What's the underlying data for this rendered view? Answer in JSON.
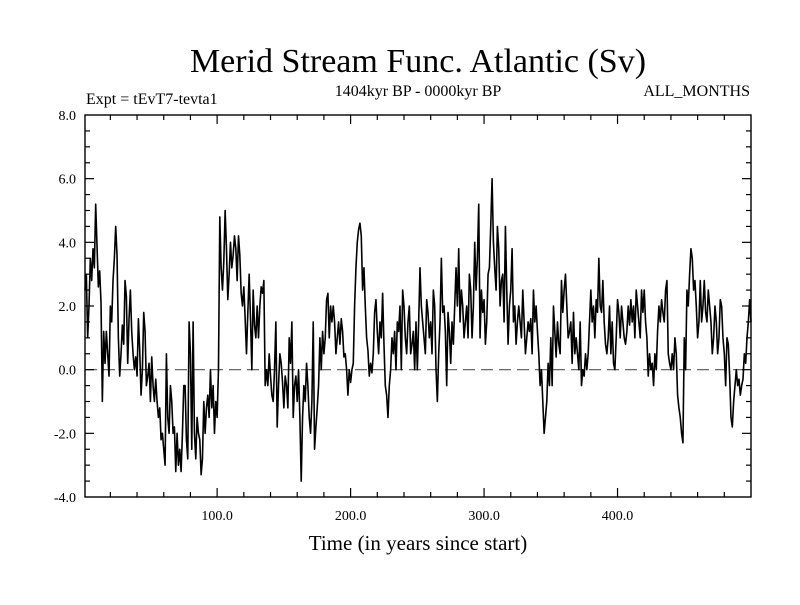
{
  "chart_data": {
    "type": "line",
    "title": "Merid Stream Func. Atlantic (Sv)",
    "subtitle": "1404kyr BP - 0000kyr BP",
    "experiment": "Expt = tEvT7-tevta1",
    "season": "ALL_MONTHS",
    "xlabel": "Time (in years since start)",
    "ylabel": "",
    "xlim": [
      1,
      500
    ],
    "ylim": [
      -4.0,
      8.0
    ],
    "xticks": [
      100,
      200,
      300,
      400
    ],
    "xtick_labels": [
      "100.0",
      "200.0",
      "300.0",
      "400.0"
    ],
    "yticks": [
      -4,
      -2,
      0,
      2,
      4,
      6,
      8
    ],
    "ytick_labels": [
      "-4.0",
      "-2.0",
      "0.0",
      "2.0",
      "4.0",
      "6.0",
      "8.0"
    ],
    "zero_line": 0.0,
    "colors": {
      "line": "#000000",
      "axis": "#000000",
      "background": "#ffffff"
    },
    "series": [
      {
        "name": "Merid Stream Func. Atlantic",
        "x_start": 1,
        "x_step": 1,
        "values": [
          2.5,
          3.0,
          1.0,
          2.0,
          3.5,
          2.8,
          3.8,
          3.2,
          5.2,
          3.9,
          2.6,
          3.1,
          2.1,
          -1.0,
          1.2,
          0.2,
          1.2,
          0.5,
          -0.2,
          2.0,
          1.5,
          2.8,
          3.5,
          4.5,
          3.6,
          1.0,
          -0.2,
          0.5,
          1.4,
          0.8,
          2.8,
          2.3,
          0.2,
          1.6,
          2.5,
          1.2,
          0.5,
          0.0,
          0.4,
          -0.2,
          1.6,
          0.6,
          -0.8,
          0.0,
          1.8,
          1.2,
          -0.5,
          -0.2,
          0.2,
          -1.0,
          0.4,
          -0.5,
          -1.0,
          -0.3,
          -1.0,
          -1.5,
          -1.2,
          -2.2,
          -2.0,
          -2.5,
          -3.0,
          0.5,
          -1.5,
          -2.0,
          -0.5,
          -1.0,
          -2.0,
          -1.8,
          -3.2,
          -2.0,
          -3.0,
          -2.5,
          -3.2,
          -2.0,
          -0.5,
          -0.5,
          -2.2,
          -2.8,
          1.5,
          0.5,
          -2.5,
          1.5,
          -2.0,
          -2.8,
          -1.5,
          -2.0,
          -2.2,
          -3.3,
          -2.8,
          -1.0,
          -2.0,
          -1.2,
          -0.8,
          -1.5,
          0.0,
          -1.2,
          -0.5,
          -2.0,
          -1.0,
          -1.5,
          0.0,
          4.8,
          3.2,
          2.5,
          3.4,
          5.0,
          3.8,
          2.2,
          3.0,
          4.0,
          3.2,
          3.6,
          4.2,
          3.8,
          2.8,
          4.2,
          3.6,
          2.4,
          2.0,
          2.6,
          1.6,
          0.5,
          1.8,
          3.0,
          1.6,
          0.0,
          2.5,
          1.4,
          1.0,
          2.0,
          1.0,
          2.0,
          2.6,
          2.4,
          2.8,
          -0.5,
          0.0,
          -0.5,
          0.5,
          -0.2,
          -0.8,
          -1.0,
          0.0,
          1.5,
          -1.8,
          -0.5,
          0.5,
          0.2,
          -0.4,
          -1.2,
          -0.2,
          -0.5,
          -1.2,
          1.0,
          0.2,
          1.5,
          -1.5,
          -0.5,
          -0.2,
          -1.0,
          0.0,
          -1.5,
          -3.5,
          -1.5,
          -0.5,
          -1.0,
          0.2,
          -0.5,
          -1.5,
          -2.0,
          -1.0,
          1.5,
          -2.5,
          -1.8,
          -1.2,
          -0.5,
          1.0,
          0.0,
          1.2,
          0.5,
          1.0,
          2.2,
          2.4,
          1.0,
          2.0,
          1.5,
          2.0,
          1.5,
          0.5,
          1.0,
          1.5,
          0.8,
          1.6,
          1.2,
          0.4,
          0.5,
          0.0,
          -0.8,
          0.0,
          -0.4,
          0.0,
          0.2,
          2.0,
          3.2,
          4.0,
          4.4,
          4.6,
          4.2,
          2.5,
          3.2,
          2.0,
          1.0,
          0.6,
          -0.2,
          0.2,
          -0.1,
          0.5,
          1.8,
          2.2,
          1.2,
          0.5,
          1.5,
          1.0,
          2.4,
          0.8,
          -0.5,
          -0.8,
          -1.5,
          -0.5,
          0.0,
          1.0,
          0.5,
          1.2,
          0.0,
          1.5,
          1.2,
          2.0,
          0.0,
          2.5,
          2.0,
          1.0,
          0.5,
          1.5,
          2.0,
          0.5,
          0.8,
          1.2,
          0.0,
          1.5,
          0.0,
          1.5,
          3.2,
          2.0,
          1.5,
          1.0,
          0.5,
          2.2,
          1.8,
          1.0,
          1.5,
          0.5,
          2.5,
          2.0,
          0.0,
          -1.0,
          0.5,
          1.5,
          3.5,
          1.8,
          2.0,
          1.2,
          -0.5,
          1.8,
          1.2,
          0.2,
          1.5,
          0.8,
          2.0,
          3.2,
          2.0,
          3.8,
          1.5,
          2.5,
          2.0,
          1.0,
          1.5,
          2.0,
          1.0,
          3.0,
          2.5,
          1.0,
          2.0,
          4.0,
          2.5,
          3.5,
          5.2,
          1.0,
          2.5,
          1.8,
          2.2,
          0.8,
          1.5,
          3.0,
          3.2,
          4.5,
          6.0,
          4.0,
          3.2,
          2.5,
          4.5,
          3.8,
          2.0,
          2.8,
          3.0,
          1.5,
          4.5,
          2.5,
          0.8,
          2.0,
          2.5,
          3.8,
          1.5,
          2.0,
          0.8,
          1.5,
          2.0,
          1.5,
          1.0,
          2.5,
          1.5,
          0.5,
          1.0,
          1.5,
          1.2,
          1.6,
          0.5,
          2.5,
          1.5,
          2.0,
          1.2,
          0.5,
          -0.5,
          0.0,
          -1.0,
          -2.0,
          -1.5,
          -1.0,
          0.2,
          -0.5,
          1.0,
          -0.5,
          2.0,
          1.2,
          0.4,
          1.5,
          0.8,
          0.5,
          2.8,
          1.8,
          2.5,
          3.0,
          2.0,
          1.0,
          1.2,
          1.5,
          0.2,
          1.8,
          0.5,
          1.0,
          0.5,
          0.0,
          1.5,
          -0.5,
          0.0,
          -0.2,
          0.5,
          0.0,
          0.5,
          1.5,
          2.5,
          1.5,
          2.0,
          1.0,
          2.2,
          1.8,
          3.5,
          2.0,
          1.8,
          2.8,
          1.5,
          0.8,
          0.5,
          1.0,
          2.0,
          0.5,
          1.5,
          0.2,
          0.0,
          1.0,
          2.2,
          1.8,
          1.0,
          2.0,
          1.5,
          1.0,
          0.8,
          1.2,
          2.0,
          1.4,
          2.2,
          1.5,
          2.0,
          1.0,
          2.5,
          2.0,
          1.5,
          1.0,
          2.5,
          1.8,
          2.5,
          1.5,
          1.0,
          -0.2,
          0.5,
          0.0,
          0.2,
          -0.5,
          0.5,
          0.0,
          1.2,
          2.0,
          1.5,
          2.2,
          1.8,
          1.5,
          2.5,
          2.8,
          0.5,
          0.2,
          0.0,
          0.5,
          0.0,
          1.0,
          0.5,
          -0.8,
          -1.2,
          -1.5,
          -2.0,
          -2.3,
          1.0,
          0.0,
          2.5,
          2.0,
          3.0,
          3.8,
          3.5,
          2.5,
          2.8,
          2.0,
          1.0,
          1.5,
          2.8,
          1.5,
          2.0,
          2.8,
          1.8,
          1.5,
          2.5,
          2.0,
          1.5,
          0.5,
          1.0,
          2.0,
          1.5,
          0.5,
          1.0,
          2.2,
          2.0,
          1.0,
          0.5,
          -0.5,
          1.0,
          0.8,
          -0.2,
          -1.5,
          -1.8,
          -1.0,
          -0.5,
          0.0,
          -0.5,
          -0.3,
          -0.8,
          -0.5,
          -0.3,
          0.5,
          0.2,
          1.0,
          1.5,
          2.2,
          1.5
        ],
        "comment": "values read approximately from the plotted curve, roughly every year"
      }
    ]
  }
}
